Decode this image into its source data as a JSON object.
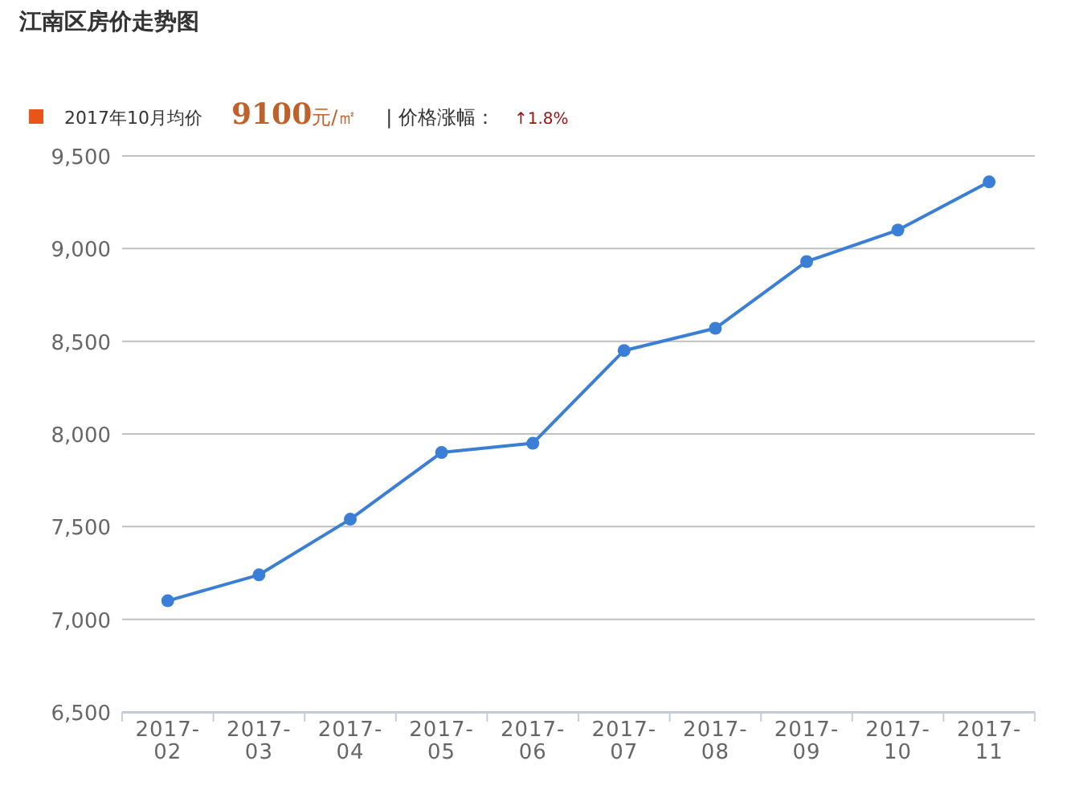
{
  "chart_data": {
    "type": "line",
    "title": "江南区房价走势图",
    "annotations": [
      "2017年10月均价",
      "9100元/㎡",
      "| 价格涨幅：",
      "↑1.8%"
    ],
    "categories": [
      "2017-02",
      "2017-03",
      "2017-04",
      "2017-05",
      "2017-06",
      "2017-07",
      "2017-08",
      "2017-09",
      "2017-10",
      "2017-11"
    ],
    "series": [
      {
        "color": "#3a7fd5",
        "values": [
          7100,
          7240,
          7540,
          7900,
          7950,
          8450,
          8570,
          8930,
          9100,
          9360
        ]
      }
    ],
    "ylim": [
      6500,
      9500
    ],
    "yticks": [
      {
        "value": 6500,
        "label": "6,500"
      },
      {
        "value": 7000,
        "label": "7,000"
      },
      {
        "value": 7500,
        "label": "7,500"
      },
      {
        "value": 8000,
        "label": "8,000"
      },
      {
        "value": 8500,
        "label": "8,500"
      },
      {
        "value": 9000,
        "label": "9,000"
      },
      {
        "value": 9500,
        "label": "9,500"
      }
    ],
    "grid": "y",
    "marker": "circle"
  }
}
